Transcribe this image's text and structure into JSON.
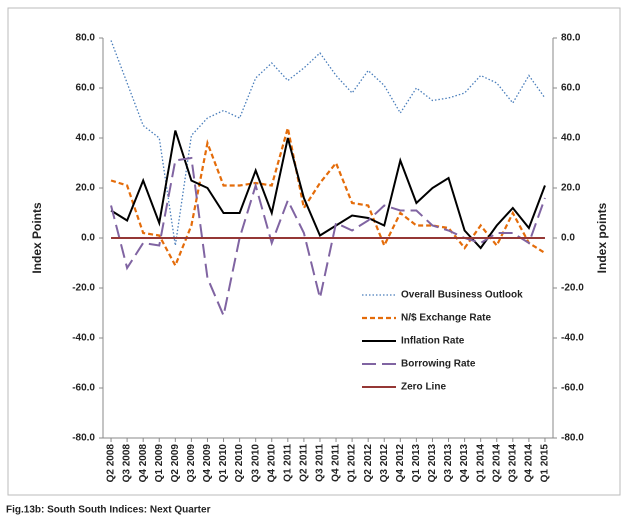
{
  "chart_data": {
    "type": "line",
    "title": "Fig.13b: South South  Indices: Next Quarter",
    "y_label": "Index Points",
    "y2_label": "Index points",
    "categories": [
      "Q2 2008",
      "Q3 2008",
      "Q4 2008",
      "Q1 2009",
      "Q2 2009",
      "Q3 2009",
      "Q4 2009",
      "Q1 2010",
      "Q2 2010",
      "Q3 2010",
      "Q4 2010",
      "Q1 2011",
      "Q2 2011",
      "Q3 2011",
      "Q4 2011",
      "Q1 2012",
      "Q2 2012",
      "Q3 2012",
      "Q4 2012",
      "Q1 2013",
      "Q2 2013",
      "Q3 2013",
      "Q4 2013",
      "Q1 2014",
      "Q2 2014",
      "Q3 2014",
      "Q4 2014",
      "Q1 2015"
    ],
    "series": [
      {
        "name": "Overall Business Outlook",
        "color": "#4a7ebb",
        "line_style": "dotted",
        "values": [
          79,
          62,
          45,
          40,
          -3,
          41,
          48,
          51,
          48,
          64,
          70,
          63,
          68,
          74,
          65,
          58,
          67,
          61,
          50,
          60,
          55,
          56,
          58,
          65,
          62,
          54,
          65,
          56
        ]
      },
      {
        "name": "N/$ Exchange Rate",
        "color": "#e46c0a",
        "line_style": "dashed",
        "values": [
          23,
          21,
          2,
          1,
          -11,
          5,
          38,
          21,
          21,
          22,
          21,
          44,
          12,
          22,
          30,
          14,
          13,
          -3,
          10,
          5,
          5,
          4,
          -4,
          5,
          -3,
          10,
          -2,
          -6
        ]
      },
      {
        "name": "Inflation Rate",
        "color": "#000000",
        "line_style": "solid",
        "values": [
          11,
          7,
          23,
          6,
          43,
          23,
          20,
          10,
          10,
          27,
          10,
          40,
          16,
          1,
          5,
          9,
          8,
          5,
          31,
          14,
          20,
          24,
          3,
          -4,
          5,
          12,
          4,
          21
        ]
      },
      {
        "name": "Borrowing Rate",
        "color": "#8064a2",
        "line_style": "long-dash",
        "values": [
          13,
          -12,
          -2,
          -3,
          31,
          32,
          -16,
          -31,
          0,
          21,
          -2,
          15,
          2,
          -24,
          6,
          3,
          7,
          13,
          11,
          11,
          5,
          3,
          0,
          -2,
          2,
          2,
          -2,
          16
        ]
      },
      {
        "name": "Zero Line",
        "color": "#953735",
        "line_style": "solid",
        "values": [
          0,
          0,
          0,
          0,
          0,
          0,
          0,
          0,
          0,
          0,
          0,
          0,
          0,
          0,
          0,
          0,
          0,
          0,
          0,
          0,
          0,
          0,
          0,
          0,
          0,
          0,
          0,
          0
        ]
      }
    ],
    "ylim": [
      -80,
      80
    ],
    "yticks": [
      {
        "value": -80,
        "label": "-80.0"
      },
      {
        "value": -60,
        "label": "-60.0"
      },
      {
        "value": -40,
        "label": "-40.0"
      },
      {
        "value": -20,
        "label": "-20.0"
      },
      {
        "value": 0,
        "label": "0.0"
      },
      {
        "value": 20,
        "label": "20.0"
      },
      {
        "value": 40,
        "label": "40.0"
      },
      {
        "value": 60,
        "label": "60.0"
      },
      {
        "value": 80,
        "label": "80.0"
      }
    ],
    "y2lim": [
      -80,
      80
    ],
    "y2ticks": [
      {
        "value": -80,
        "label": "-80.0"
      },
      {
        "value": -60,
        "label": "-60.0"
      },
      {
        "value": -40,
        "label": "-40.0"
      },
      {
        "value": -20,
        "label": "-20.0"
      },
      {
        "value": 0,
        "label": "0.0"
      },
      {
        "value": 20,
        "label": "20.0"
      },
      {
        "value": 40,
        "label": "40.0"
      },
      {
        "value": 60,
        "label": "60.0"
      },
      {
        "value": 80,
        "label": "80.0"
      }
    ],
    "grid": false
  }
}
